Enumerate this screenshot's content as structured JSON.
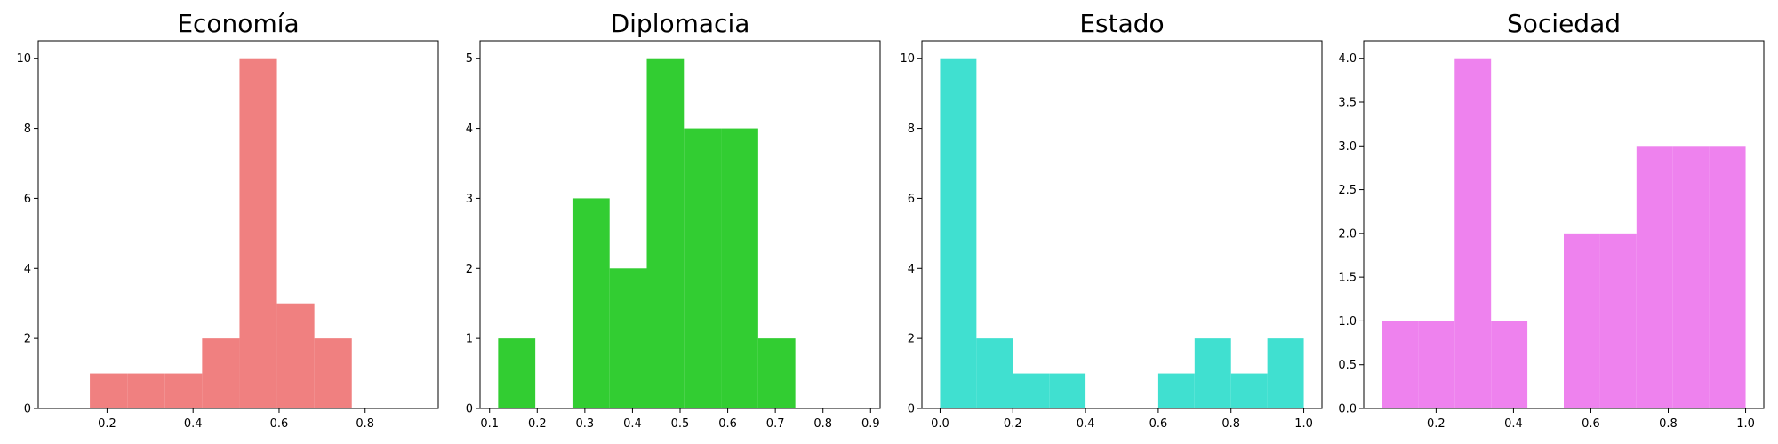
{
  "chart_data": [
    {
      "type": "histogram",
      "title": "Economía",
      "color": "#f08080",
      "xlim": [
        0.04,
        0.97
      ],
      "ylim": [
        0,
        10.5
      ],
      "xticks": [
        0.2,
        0.4,
        0.6,
        0.8
      ],
      "xtick_labels": [
        "0.2",
        "0.4",
        "0.6",
        "0.8"
      ],
      "yticks": [
        0,
        2,
        4,
        6,
        8,
        10
      ],
      "ytick_labels": [
        "0",
        "2",
        "4",
        "6",
        "8",
        "10"
      ],
      "bins": [
        {
          "x0": 0.16,
          "x1": 0.247,
          "count": 1
        },
        {
          "x0": 0.247,
          "x1": 0.334,
          "count": 1
        },
        {
          "x0": 0.334,
          "x1": 0.421,
          "count": 1
        },
        {
          "x0": 0.421,
          "x1": 0.508,
          "count": 2
        },
        {
          "x0": 0.508,
          "x1": 0.595,
          "count": 10
        },
        {
          "x0": 0.595,
          "x1": 0.682,
          "count": 3
        },
        {
          "x0": 0.682,
          "x1": 0.769,
          "count": 2
        }
      ]
    },
    {
      "type": "histogram",
      "title": "Diplomacia",
      "color": "#32cd32",
      "xlim": [
        0.08,
        0.92
      ],
      "ylim": [
        0,
        5.25
      ],
      "xticks": [
        0.1,
        0.2,
        0.3,
        0.4,
        0.5,
        0.6,
        0.7,
        0.8,
        0.9
      ],
      "xtick_labels": [
        "0.1",
        "0.2",
        "0.3",
        "0.4",
        "0.5",
        "0.6",
        "0.7",
        "0.8",
        "0.9"
      ],
      "yticks": [
        0,
        1,
        2,
        3,
        4,
        5
      ],
      "ytick_labels": [
        "0",
        "1",
        "2",
        "3",
        "4",
        "5"
      ],
      "bins": [
        {
          "x0": 0.118,
          "x1": 0.196,
          "count": 1
        },
        {
          "x0": 0.196,
          "x1": 0.274,
          "count": 0
        },
        {
          "x0": 0.274,
          "x1": 0.352,
          "count": 3
        },
        {
          "x0": 0.352,
          "x1": 0.43,
          "count": 2
        },
        {
          "x0": 0.43,
          "x1": 0.508,
          "count": 5
        },
        {
          "x0": 0.508,
          "x1": 0.586,
          "count": 4
        },
        {
          "x0": 0.586,
          "x1": 0.664,
          "count": 4
        },
        {
          "x0": 0.664,
          "x1": 0.742,
          "count": 1
        }
      ]
    },
    {
      "type": "histogram",
      "title": "Estado",
      "color": "#40e0d0",
      "xlim": [
        -0.05,
        1.05
      ],
      "ylim": [
        0,
        10.5
      ],
      "xticks": [
        0.0,
        0.2,
        0.4,
        0.6,
        0.8,
        1.0
      ],
      "xtick_labels": [
        "0.0",
        "0.2",
        "0.4",
        "0.6",
        "0.8",
        "1.0"
      ],
      "yticks": [
        0,
        2,
        4,
        6,
        8,
        10
      ],
      "ytick_labels": [
        "0",
        "2",
        "4",
        "6",
        "8",
        "10"
      ],
      "bins": [
        {
          "x0": 0.0,
          "x1": 0.1,
          "count": 10
        },
        {
          "x0": 0.1,
          "x1": 0.2,
          "count": 2
        },
        {
          "x0": 0.2,
          "x1": 0.3,
          "count": 1
        },
        {
          "x0": 0.3,
          "x1": 0.4,
          "count": 1
        },
        {
          "x0": 0.4,
          "x1": 0.5,
          "count": 0
        },
        {
          "x0": 0.5,
          "x1": 0.6,
          "count": 0
        },
        {
          "x0": 0.6,
          "x1": 0.7,
          "count": 1
        },
        {
          "x0": 0.7,
          "x1": 0.8,
          "count": 2
        },
        {
          "x0": 0.8,
          "x1": 0.9,
          "count": 1
        },
        {
          "x0": 0.9,
          "x1": 1.0,
          "count": 2
        }
      ]
    },
    {
      "type": "histogram",
      "title": "Sociedad",
      "color": "#ee82ee",
      "xlim": [
        0.013,
        1.047
      ],
      "ylim": [
        0,
        4.2
      ],
      "xticks": [
        0.2,
        0.4,
        0.6,
        0.8,
        1.0
      ],
      "xtick_labels": [
        "0.2",
        "0.4",
        "0.6",
        "0.8",
        "1.0"
      ],
      "yticks": [
        0.0,
        0.5,
        1.0,
        1.5,
        2.0,
        2.5,
        3.0,
        3.5,
        4.0
      ],
      "ytick_labels": [
        "0.0",
        "0.5",
        "1.0",
        "1.5",
        "2.0",
        "2.5",
        "3.0",
        "3.5",
        "4.0"
      ],
      "bins": [
        {
          "x0": 0.06,
          "x1": 0.154,
          "count": 1
        },
        {
          "x0": 0.154,
          "x1": 0.248,
          "count": 1
        },
        {
          "x0": 0.248,
          "x1": 0.342,
          "count": 4
        },
        {
          "x0": 0.342,
          "x1": 0.436,
          "count": 1
        },
        {
          "x0": 0.436,
          "x1": 0.53,
          "count": 0
        },
        {
          "x0": 0.53,
          "x1": 0.624,
          "count": 2
        },
        {
          "x0": 0.624,
          "x1": 0.718,
          "count": 2
        },
        {
          "x0": 0.718,
          "x1": 0.812,
          "count": 3
        },
        {
          "x0": 0.812,
          "x1": 0.906,
          "count": 3
        },
        {
          "x0": 0.906,
          "x1": 1.0,
          "count": 3
        }
      ]
    }
  ]
}
